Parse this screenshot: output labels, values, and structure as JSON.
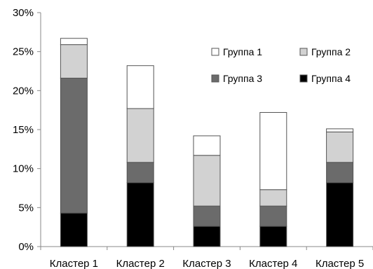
{
  "chart_data": {
    "type": "bar",
    "stacked": true,
    "title": "",
    "xlabel": "",
    "ylabel": "",
    "ylim": [
      0,
      30
    ],
    "y_ticks": [
      "0%",
      "5%",
      "10%",
      "15%",
      "20%",
      "25%",
      "30%"
    ],
    "categories": [
      "Кластер 1",
      "Кластер 2",
      "Кластер 3",
      "Кластер 4",
      "Кластер 5"
    ],
    "series": [
      {
        "name": "Группа 4",
        "color": "#000000",
        "values": [
          4.3,
          8.2,
          2.6,
          2.6,
          8.2
        ]
      },
      {
        "name": "Группа 3",
        "color": "#6b6b6b",
        "values": [
          17.3,
          2.6,
          2.6,
          2.6,
          2.6
        ]
      },
      {
        "name": "Группа 2",
        "color": "#d2d2d2",
        "values": [
          4.3,
          6.9,
          6.5,
          2.1,
          3.9
        ]
      },
      {
        "name": "Группа 1",
        "color": "#ffffff",
        "values": [
          0.8,
          5.5,
          2.5,
          9.9,
          0.4
        ]
      }
    ],
    "legend": {
      "placement": "top-right",
      "order": [
        "Группа 1",
        "Группа 2",
        "Группа 3",
        "Группа 4"
      ]
    },
    "grid": false
  }
}
